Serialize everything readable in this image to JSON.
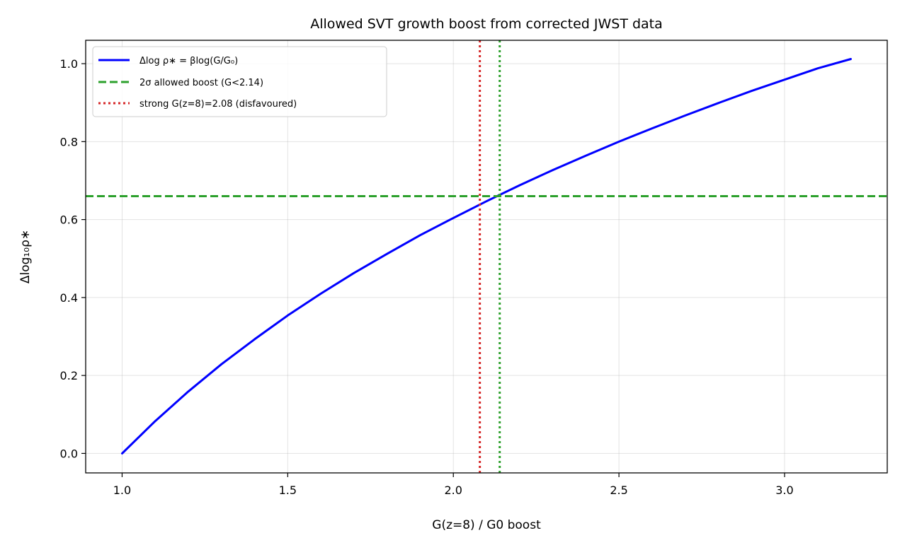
{
  "chart_data": {
    "type": "line",
    "title": "Allowed SVT growth boost from corrected JWST data",
    "xlabel": "G(z=8) / G0 boost",
    "ylabel": "Δlog₁₀ρ∗",
    "xlim": [
      0.89,
      3.31
    ],
    "ylim": [
      -0.05,
      1.06
    ],
    "x_ticks": [
      1.0,
      1.5,
      2.0,
      2.5,
      3.0
    ],
    "x_tick_labels": [
      "1.0",
      "1.5",
      "2.0",
      "2.5",
      "3.0"
    ],
    "y_ticks": [
      0.0,
      0.2,
      0.4,
      0.6,
      0.8,
      1.0
    ],
    "y_tick_labels": [
      "0.0",
      "0.2",
      "0.4",
      "0.6",
      "0.8",
      "1.0"
    ],
    "grid": true,
    "legend_position": "top-left",
    "series": [
      {
        "name": "Δlog ρ∗ = βlog(G/G₀)",
        "color": "#0000ff",
        "style": "solid",
        "x": [
          1.0,
          1.1,
          1.2,
          1.3,
          1.4,
          1.5,
          1.6,
          1.7,
          1.8,
          1.9,
          2.0,
          2.1,
          2.2,
          2.3,
          2.4,
          2.5,
          2.6,
          2.7,
          2.8,
          2.9,
          3.0,
          3.1,
          3.2
        ],
        "y": [
          0.0,
          0.083,
          0.159,
          0.229,
          0.293,
          0.354,
          0.41,
          0.463,
          0.512,
          0.56,
          0.604,
          0.647,
          0.688,
          0.727,
          0.764,
          0.8,
          0.834,
          0.867,
          0.899,
          0.93,
          0.959,
          0.988,
          1.012
        ]
      }
    ],
    "reference_lines": [
      {
        "orientation": "horizontal",
        "value": 0.66,
        "color": "#2ca02c",
        "style": "dashed",
        "legend": "2σ allowed boost (G<2.14)"
      },
      {
        "orientation": "vertical",
        "value": 2.14,
        "color": "#2ca02c",
        "style": "dotted"
      },
      {
        "orientation": "vertical",
        "value": 2.08,
        "color": "#d62728",
        "style": "dotted",
        "legend": "strong G(z=8)=2.08 (disfavoured)"
      }
    ],
    "legend": [
      {
        "label": "Δlog ρ∗ = βlog(G/G₀)",
        "color": "#0000ff",
        "style": "solid"
      },
      {
        "label": "2σ allowed boost (G<2.14)",
        "color": "#2ca02c",
        "style": "dashed"
      },
      {
        "label": "strong G(z=8)=2.08 (disfavoured)",
        "color": "#d62728",
        "style": "dotted"
      }
    ]
  }
}
